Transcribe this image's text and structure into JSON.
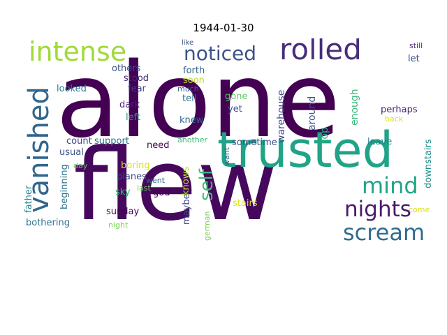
{
  "title": "1944-01-30",
  "words": [
    {
      "id": "alone",
      "text": "alone",
      "color": "#440154",
      "orientation": "horizontal"
    },
    {
      "id": "flew",
      "text": "flew",
      "color": "#46085c",
      "orientation": "horizontal"
    },
    {
      "id": "trusted",
      "text": "trusted",
      "color": "#20a386",
      "orientation": "horizontal"
    },
    {
      "id": "rolled",
      "text": "rolled",
      "color": "#472d7b",
      "orientation": "horizontal"
    },
    {
      "id": "intense",
      "text": "intense",
      "color": "#a0da39",
      "orientation": "horizontal"
    },
    {
      "id": "vanished",
      "text": "vanished",
      "color": "#31668e",
      "orientation": "vertical"
    },
    {
      "id": "noticed",
      "text": "noticed",
      "color": "#3b528b",
      "orientation": "horizontal"
    },
    {
      "id": "mind",
      "text": "mind",
      "color": "#20a486",
      "orientation": "horizontal"
    },
    {
      "id": "nights",
      "text": "nights",
      "color": "#481a6c",
      "orientation": "horizontal"
    },
    {
      "id": "scream",
      "text": "scream",
      "color": "#2f6c8e",
      "orientation": "horizontal"
    },
    {
      "id": "self",
      "text": "self",
      "color": "#3fbc73",
      "orientation": "vertical"
    },
    {
      "id": "warehouse",
      "text": "warehouse",
      "color": "#3e4a89",
      "orientation": "vertical"
    },
    {
      "id": "around",
      "text": "around",
      "color": "#3b528b",
      "orientation": "vertical"
    },
    {
      "id": "enough",
      "text": "enough",
      "color": "#38b977",
      "orientation": "vertical"
    },
    {
      "id": "top",
      "text": "top",
      "color": "#29af7f",
      "orientation": "vertical"
    },
    {
      "id": "others",
      "text": "others",
      "color": "#3b528b",
      "orientation": "horizontal"
    },
    {
      "id": "stood",
      "text": "stood",
      "color": "#482878",
      "orientation": "horizontal"
    },
    {
      "id": "forth",
      "text": "forth",
      "color": "#31688e",
      "orientation": "horizontal"
    },
    {
      "id": "soon",
      "text": "soon",
      "color": "#b8de29",
      "orientation": "horizontal"
    },
    {
      "id": "looked",
      "text": "looked",
      "color": "#2a788e",
      "orientation": "horizontal"
    },
    {
      "id": "fear",
      "text": "fear",
      "color": "#433e85",
      "orientation": "horizontal"
    },
    {
      "id": "much",
      "text": "much",
      "color": "#31688e",
      "orientation": "horizontal"
    },
    {
      "id": "tell",
      "text": "tell",
      "color": "#2a788e",
      "orientation": "horizontal"
    },
    {
      "id": "gone",
      "text": "gone",
      "color": "#5ec962",
      "orientation": "horizontal"
    },
    {
      "id": "yet",
      "text": "yet",
      "color": "#3b528b",
      "orientation": "horizontal"
    },
    {
      "id": "dark",
      "text": "dark",
      "color": "#482475",
      "orientation": "horizontal"
    },
    {
      "id": "left",
      "text": "left",
      "color": "#1f988b",
      "orientation": "horizontal"
    },
    {
      "id": "knew",
      "text": "knew",
      "color": "#31688e",
      "orientation": "horizontal"
    },
    {
      "id": "perhaps",
      "text": "perhaps",
      "color": "#482677",
      "orientation": "horizontal"
    },
    {
      "id": "back",
      "text": "back",
      "color": "#dde318",
      "orientation": "horizontal"
    },
    {
      "id": "leave",
      "text": "leave",
      "color": "#287d8e",
      "orientation": "horizontal"
    },
    {
      "id": "sometime",
      "text": "sometime",
      "color": "#3b528b",
      "orientation": "horizontal"
    },
    {
      "id": "count",
      "text": "count",
      "color": "#3e4989",
      "orientation": "horizontal"
    },
    {
      "id": "support",
      "text": "support",
      "color": "#2c728e",
      "orientation": "horizontal"
    },
    {
      "id": "usual",
      "text": "usual",
      "color": "#3b528b",
      "orientation": "horizontal"
    },
    {
      "id": "need",
      "text": "need",
      "color": "#440154",
      "orientation": "horizontal"
    },
    {
      "id": "another",
      "text": "another",
      "color": "#3dbc74",
      "orientation": "horizontal"
    },
    {
      "id": "want",
      "text": "want",
      "color": "#31688e",
      "orientation": "vertical"
    },
    {
      "id": "downstairs",
      "text": "downstairs",
      "color": "#21918c",
      "orientation": "vertical"
    },
    {
      "id": "boring",
      "text": "boring",
      "color": "#d8e219",
      "orientation": "horizontal"
    },
    {
      "id": "day",
      "text": "day",
      "color": "#5ec962",
      "orientation": "horizontal"
    },
    {
      "id": "knows",
      "text": "knows",
      "color": "#b5de2b",
      "orientation": "vertical"
    },
    {
      "id": "beginning",
      "text": "beginning",
      "color": "#2c728e",
      "orientation": "vertical"
    },
    {
      "id": "father",
      "text": "father",
      "color": "#26828e",
      "orientation": "vertical"
    },
    {
      "id": "planes",
      "text": "planes",
      "color": "#3e4989",
      "orientation": "horizontal"
    },
    {
      "id": "went",
      "text": "went",
      "color": "#31688e",
      "orientation": "horizontal"
    },
    {
      "id": "last",
      "text": "last",
      "color": "#6ece58",
      "orientation": "horizontal"
    },
    {
      "id": "sky",
      "text": "sky",
      "color": "#35b779",
      "orientation": "horizontal"
    },
    {
      "id": "god",
      "text": "god",
      "color": "#440154",
      "orientation": "horizontal"
    },
    {
      "id": "maybe",
      "text": "maybe",
      "color": "#3e4989",
      "orientation": "vertical"
    },
    {
      "id": "german",
      "text": "german",
      "color": "#7ad151",
      "orientation": "vertical"
    },
    {
      "id": "stairs",
      "text": "stairs",
      "color": "#dde318",
      "orientation": "horizontal"
    },
    {
      "id": "come",
      "text": "come",
      "color": "#dde318",
      "orientation": "horizontal"
    },
    {
      "id": "sunday",
      "text": "sunday",
      "color": "#440154",
      "orientation": "horizontal"
    },
    {
      "id": "bothering",
      "text": "bothering",
      "color": "#2c728e",
      "orientation": "horizontal"
    },
    {
      "id": "night",
      "text": "night",
      "color": "#7ad151",
      "orientation": "horizontal"
    },
    {
      "id": "like",
      "text": "like",
      "color": "#3b528b",
      "orientation": "horizontal"
    },
    {
      "id": "still",
      "text": "still",
      "color": "#482878",
      "orientation": "horizontal"
    },
    {
      "id": "let",
      "text": "let",
      "color": "#3b528b",
      "orientation": "horizontal"
    }
  ]
}
